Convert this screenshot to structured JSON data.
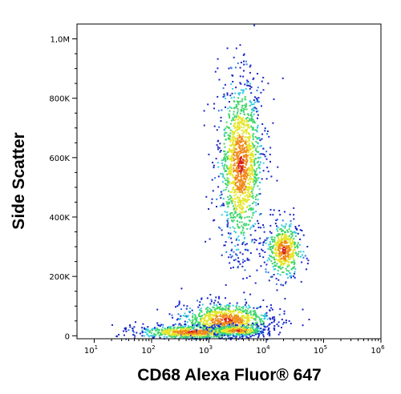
{
  "chart_data": {
    "type": "scatter",
    "subtype": "flow-cytometry-density-dot-plot",
    "xlabel": "CD68 Alexa Fluor® 647",
    "ylabel": "Side Scatter",
    "x_scale": "log",
    "x_range": [
      5,
      1000000
    ],
    "y_range": [
      -10000,
      1050000
    ],
    "x_ticks": [
      {
        "value": 10,
        "base": "10",
        "exp": "1"
      },
      {
        "value": 100,
        "base": "10",
        "exp": "2"
      },
      {
        "value": 1000,
        "base": "10",
        "exp": "3"
      },
      {
        "value": 10000,
        "base": "10",
        "exp": "4"
      },
      {
        "value": 100000,
        "base": "10",
        "exp": "5"
      },
      {
        "value": 1000000,
        "base": "10",
        "exp": "6"
      }
    ],
    "y_ticks": [
      {
        "value": 0,
        "label": "0"
      },
      {
        "value": 200000,
        "label": "200K"
      },
      {
        "value": 400000,
        "label": "400K"
      },
      {
        "value": 600000,
        "label": "600K"
      },
      {
        "value": 800000,
        "label": "800K"
      },
      {
        "value": 1000000,
        "label": "1,0M"
      }
    ],
    "grid": false,
    "legend": "none",
    "density_colors": [
      "#1a24c8",
      "#2a7ae6",
      "#33cce0",
      "#3ed66a",
      "#e4e628",
      "#f08a1c",
      "#d41e1e"
    ],
    "populations": [
      {
        "center_x": 3500,
        "center_y": 580000,
        "spread_log_x": 0.12,
        "spread_y": 120000
      },
      {
        "center_x": 20000,
        "center_y": 290000,
        "spread_log_x": 0.1,
        "spread_y": 40000
      },
      {
        "center_x": 2000,
        "center_y": 55000,
        "spread_log_x": 0.25,
        "spread_y": 25000
      },
      {
        "center_x": 500,
        "center_y": 15000,
        "spread_log_x": 0.3,
        "spread_y": 10000
      },
      {
        "center_x": 3000,
        "center_y": 20000,
        "spread_log_x": 0.15,
        "spread_y": 8000
      }
    ]
  }
}
